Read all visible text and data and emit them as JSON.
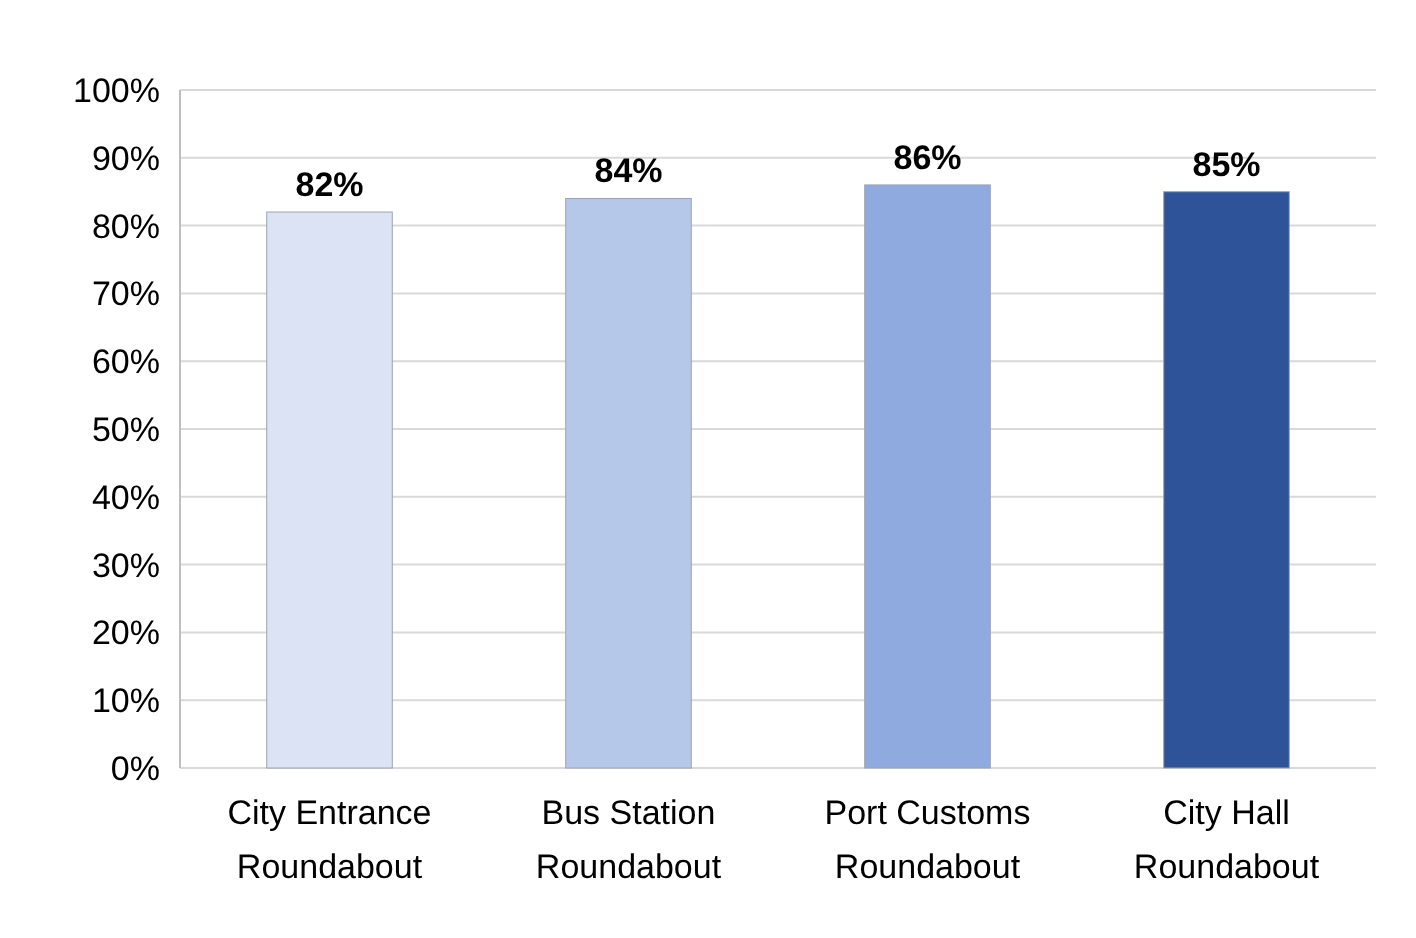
{
  "chart_data": {
    "type": "bar",
    "categories": [
      "City Entrance Roundabout",
      "Bus Station Roundabout",
      "Port Customs Roundabout",
      "City Hall Roundabout"
    ],
    "values": [
      82,
      84,
      86,
      85
    ],
    "colors": [
      "#dbe3f4",
      "#b6c8ea",
      "#8eaadf",
      "#2e5399"
    ],
    "value_labels": [
      "82%",
      "84%",
      "86%",
      "85%"
    ],
    "ylim": [
      0,
      100
    ],
    "yticks": [
      {
        "value": 0,
        "label": "0%"
      },
      {
        "value": 10,
        "label": "10%"
      },
      {
        "value": 20,
        "label": "20%"
      },
      {
        "value": 30,
        "label": "30%"
      },
      {
        "value": 40,
        "label": "40%"
      },
      {
        "value": 50,
        "label": "50%"
      },
      {
        "value": 60,
        "label": "60%"
      },
      {
        "value": 70,
        "label": "70%"
      },
      {
        "value": 80,
        "label": "80%"
      },
      {
        "value": 90,
        "label": "90%"
      },
      {
        "value": 100,
        "label": "100%"
      }
    ],
    "grid": true
  }
}
